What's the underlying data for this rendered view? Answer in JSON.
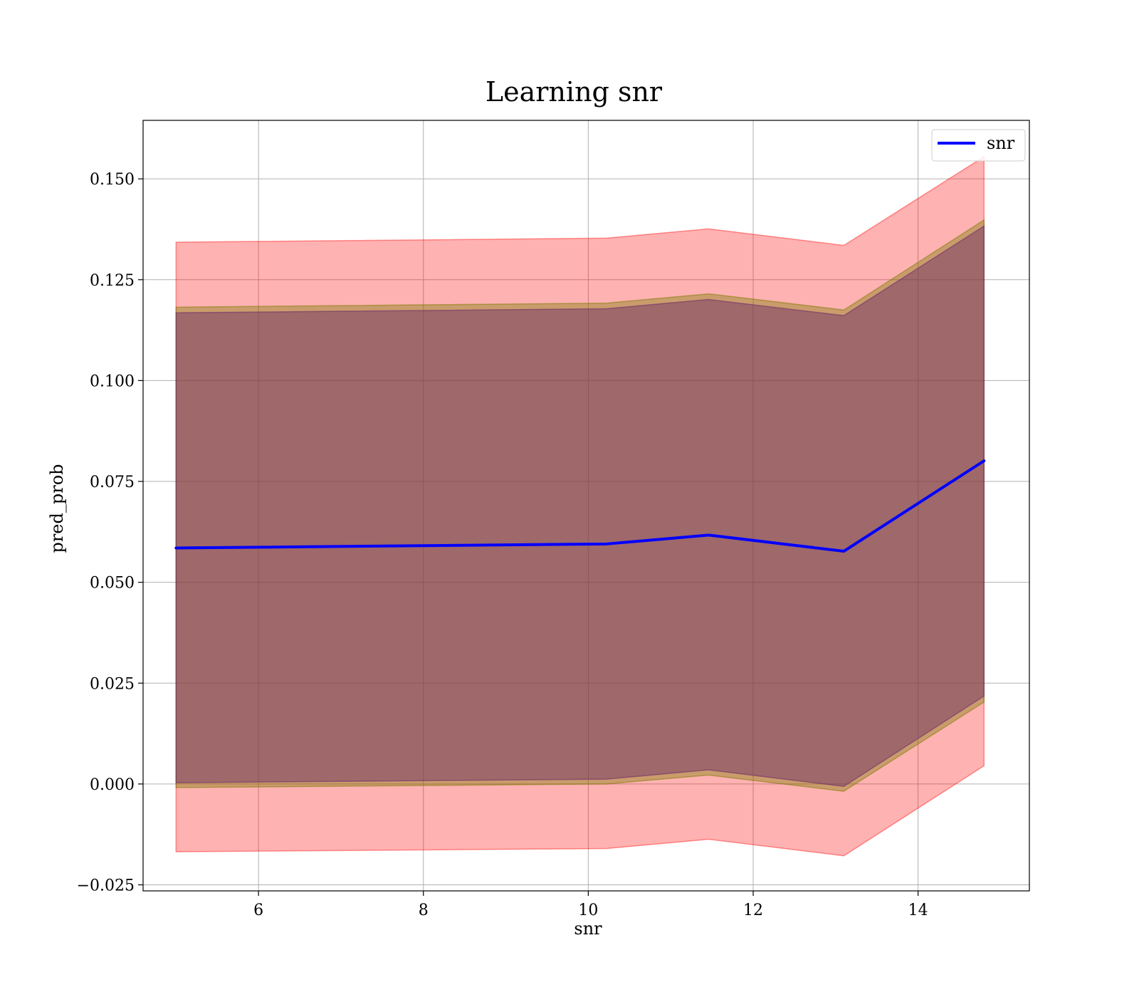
{
  "chart_data": {
    "type": "area",
    "title": "Learning snr",
    "xlabel": "snr",
    "ylabel": "pred_prob",
    "xlim": [
      4.6,
      15.35
    ],
    "ylim": [
      -0.0265,
      0.1645
    ],
    "x_ticks": [
      6,
      8,
      10,
      12,
      14
    ],
    "x_tick_labels": [
      "6",
      "8",
      "10",
      "12",
      "14"
    ],
    "y_ticks": [
      -0.025,
      0.0,
      0.025,
      0.05,
      0.075,
      0.1,
      0.125,
      0.15
    ],
    "y_tick_labels": [
      "−0.025",
      "0.000",
      "0.025",
      "0.050",
      "0.075",
      "0.100",
      "0.125",
      "0.150"
    ],
    "grid": true,
    "legend_position": "top-right",
    "x": [
      5.0,
      10.22,
      11.46,
      13.1,
      14.8
    ],
    "series": [
      {
        "name": "snr",
        "kind": "line",
        "color": "#0000ff",
        "values": [
          0.0585,
          0.0595,
          0.0617,
          0.0577,
          0.0801
        ]
      }
    ],
    "bands": [
      {
        "kind": "outer",
        "color": "#ff0000",
        "opacity": 0.3,
        "upper": [
          0.1343,
          0.1353,
          0.1376,
          0.1335,
          0.1555
        ],
        "lower": [
          -0.0168,
          -0.016,
          -0.0137,
          -0.0178,
          0.0045
        ]
      },
      {
        "kind": "middle",
        "color": "#7a7a00",
        "opacity": 0.4,
        "upper": [
          0.1182,
          0.1192,
          0.1215,
          0.1175,
          0.1398
        ],
        "lower": [
          -0.0009,
          0.0,
          0.0022,
          -0.0018,
          0.0203
        ]
      },
      {
        "kind": "inner",
        "color": "#6b2a6b",
        "opacity": 0.45,
        "upper": [
          0.1168,
          0.1178,
          0.1201,
          0.1161,
          0.1383
        ],
        "lower": [
          0.0003,
          0.0012,
          0.0035,
          -0.0006,
          0.0218
        ]
      }
    ]
  }
}
